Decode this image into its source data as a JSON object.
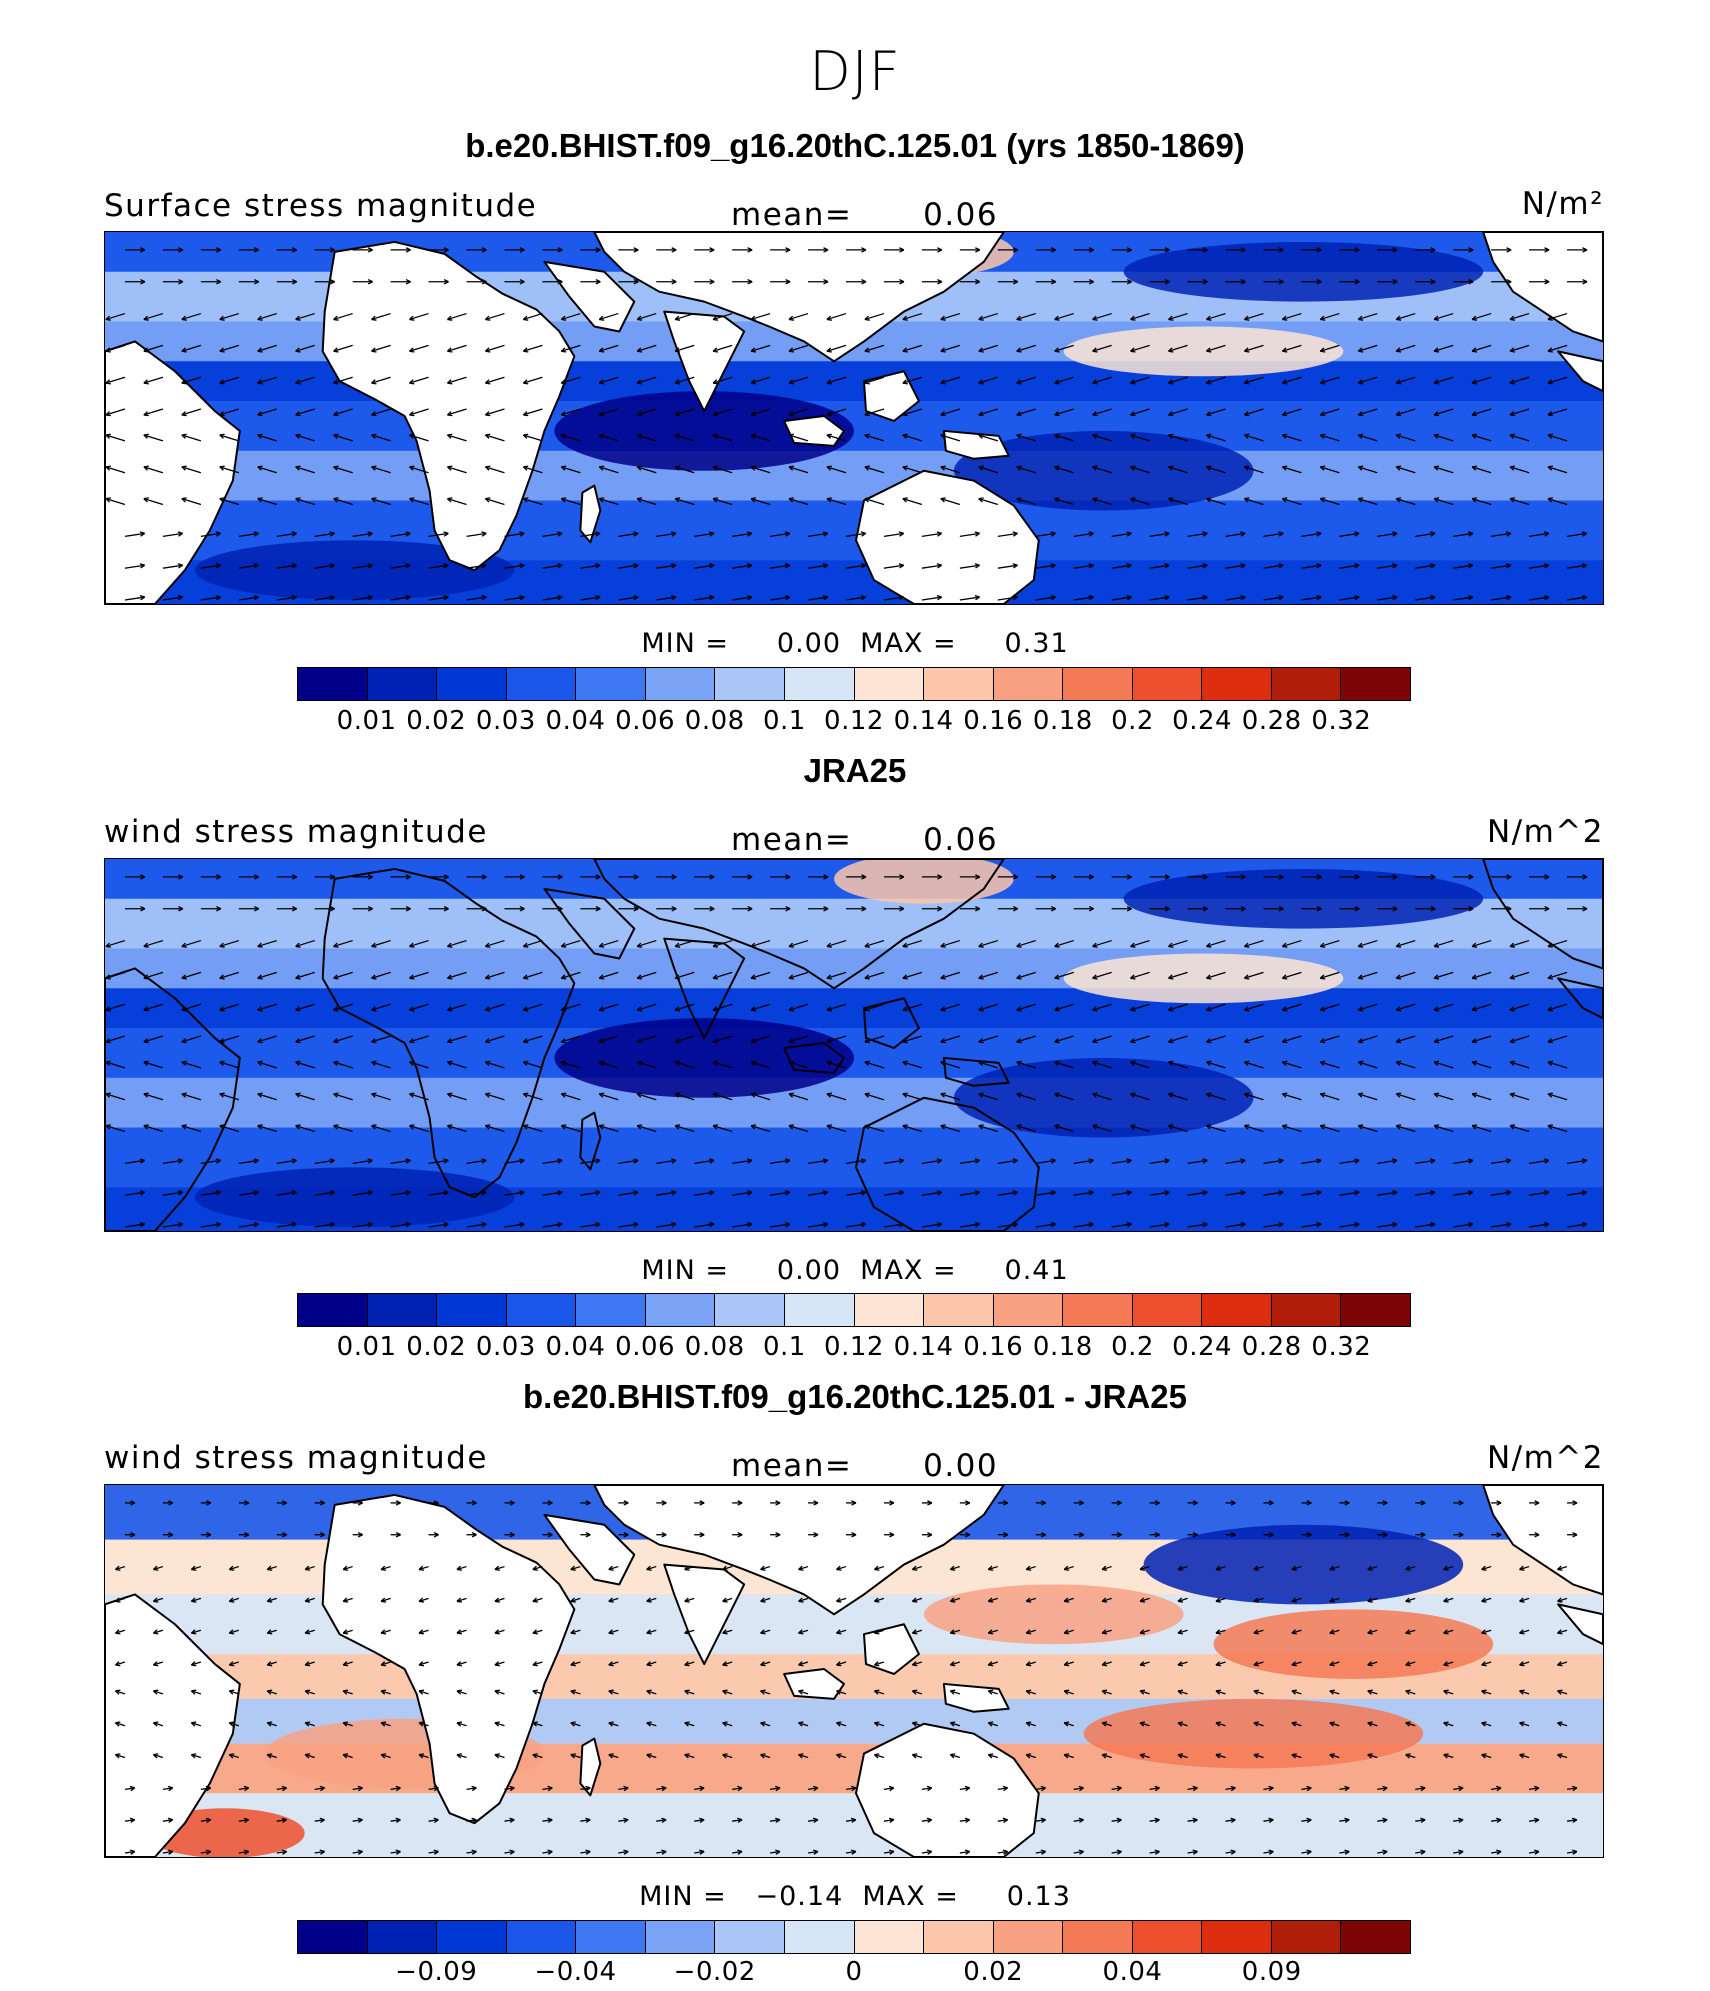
{
  "figure_title": "DJF",
  "colors": {
    "abs_scale": [
      "#00008a",
      "#0022b4",
      "#0038d6",
      "#1a56ea",
      "#3d78f2",
      "#7aa2f5",
      "#a9c6f7",
      "#d6e6f7",
      "#fde4d4",
      "#fbc6aa",
      "#f8a283",
      "#f47a56",
      "#ee4f2e",
      "#dc2e0f",
      "#b01e0a",
      "#7d0505"
    ],
    "diff_scale": [
      "#00008a",
      "#0022b4",
      "#0038d6",
      "#1a56ea",
      "#3d78f2",
      "#7aa2f5",
      "#a9c6f7",
      "#d6e6f7",
      "#fde4d4",
      "#fbc6aa",
      "#f8a283",
      "#f47a56",
      "#ee4f2e",
      "#dc2e0f",
      "#b01e0a",
      "#7d0505"
    ],
    "land": "#ffffff",
    "coast": "#000000"
  },
  "panels": [
    {
      "heading": "b.e20.BHIST.f09_g16.20thC.125.01 (yrs 1850-1869)",
      "label": "Surface stress magnitude",
      "mean_label": "mean=",
      "mean_value": "0.06",
      "units": "N/m²",
      "stats": "MIN =     0.00  MAX =     0.31",
      "colorbar_ticks": [
        "0.01",
        "0.02",
        "0.03",
        "0.04",
        "0.06",
        "0.08",
        "0.1",
        "0.12",
        "0.14",
        "0.16",
        "0.18",
        "0.2",
        "0.24",
        "0.28",
        "0.32"
      ],
      "land_masked": true,
      "scale": "abs"
    },
    {
      "heading": "JRA25",
      "label": "wind stress magnitude",
      "mean_label": "mean=",
      "mean_value": "0.06",
      "units": "N/m^2",
      "stats": "MIN =     0.00  MAX =     0.41",
      "colorbar_ticks": [
        "0.01",
        "0.02",
        "0.03",
        "0.04",
        "0.06",
        "0.08",
        "0.1",
        "0.12",
        "0.14",
        "0.16",
        "0.18",
        "0.2",
        "0.24",
        "0.28",
        "0.32"
      ],
      "land_masked": false,
      "scale": "abs"
    },
    {
      "heading": "b.e20.BHIST.f09_g16.20thC.125.01 - JRA25",
      "label": "wind stress magnitude",
      "mean_label": "mean=",
      "mean_value": "0.00",
      "units": "N/m^2",
      "stats": "MIN =   −0.14  MAX =     0.13",
      "colorbar_ticks": [
        "−0.09",
        "−0.04",
        "−0.02",
        "0",
        "0.02",
        "0.04",
        "0.09"
      ],
      "land_masked": true,
      "scale": "diff"
    }
  ]
}
